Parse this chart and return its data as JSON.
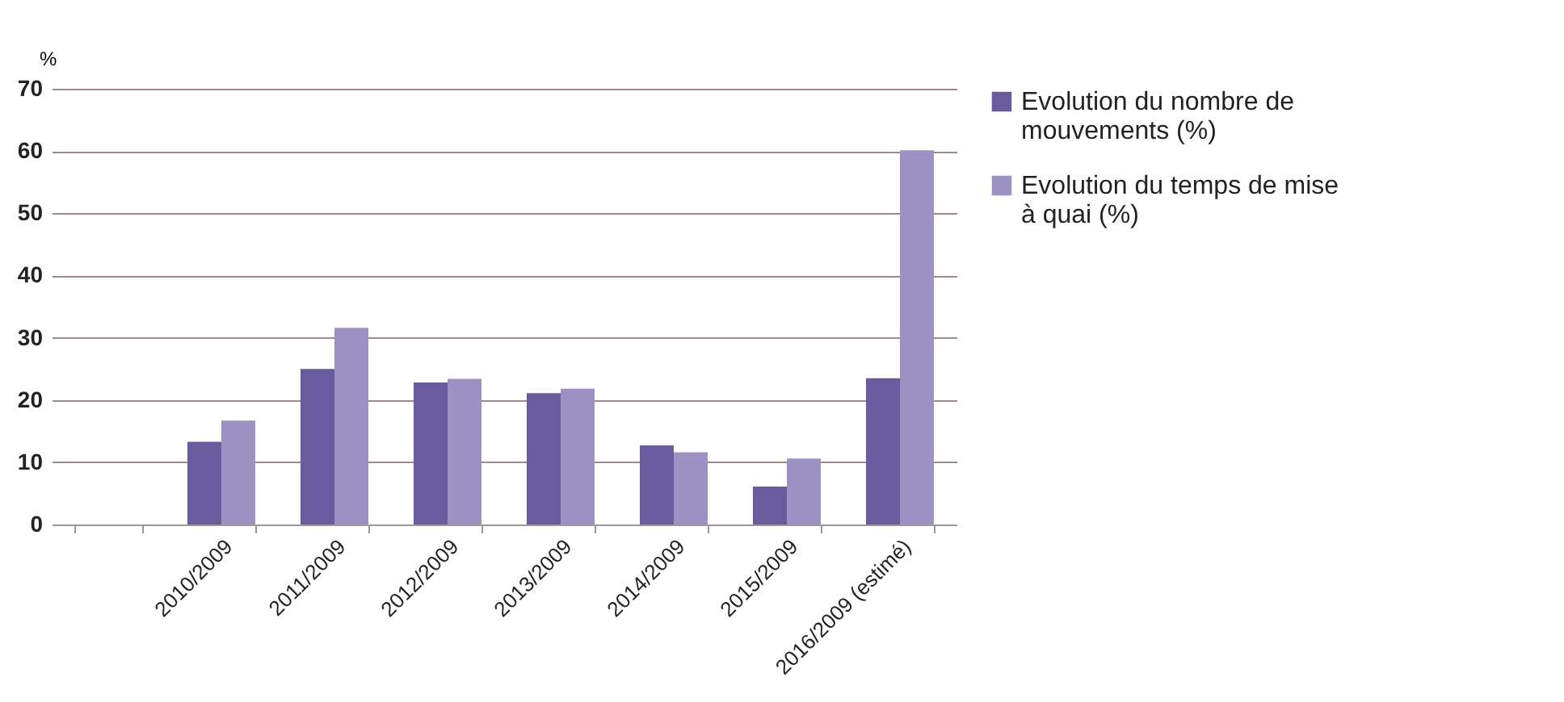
{
  "chart_data": {
    "type": "bar",
    "ylabel": "%",
    "categories": [
      null,
      "2010/2009",
      "2011/2009",
      "2012/2009",
      "2013/2009",
      "2014/2009",
      "2015/2009",
      "2016/2009 (estimé)"
    ],
    "series": [
      {
        "name": "Evolution du nombre de mouvements (%)",
        "color": "#6a5a9e",
        "values": [
          null,
          13.3,
          25.0,
          22.8,
          21.1,
          12.7,
          6.1,
          23.5
        ]
      },
      {
        "name": "Evolution du temps de mise à quai  (%)",
        "color": "#9d91c3",
        "values": [
          null,
          16.7,
          31.6,
          23.4,
          21.8,
          11.6,
          10.6,
          60.1
        ]
      }
    ],
    "ylim": [
      0,
      70
    ],
    "yticks": [
      0,
      10,
      20,
      30,
      40,
      50,
      60,
      70
    ],
    "grid": "y",
    "legend": "right"
  }
}
